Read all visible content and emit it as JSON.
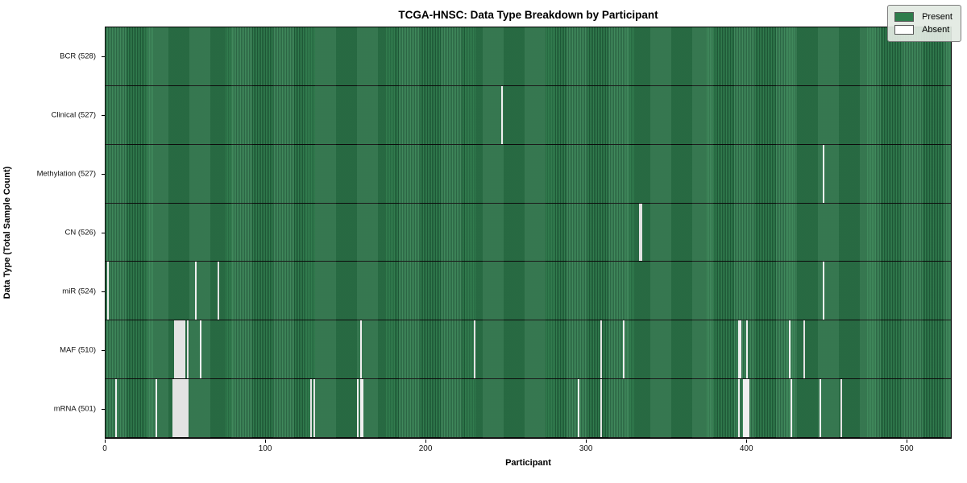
{
  "title": "TCGA-HNSC: Data Type Breakdown by Participant",
  "xlabel": "Participant",
  "ylabel": "Data Type (Total Sample Count)",
  "legend": {
    "present_label": "Present",
    "absent_label": "Absent"
  },
  "colors": {
    "present": "#2e7d4c",
    "present_stripe": "#1f5c39",
    "absent": "#efefef",
    "row_divider": "#0d0d0d",
    "legend_bg": "#e2e9e2"
  },
  "chart_data": {
    "type": "heatmap",
    "title": "TCGA-HNSC: Data Type Breakdown by Participant",
    "xlabel": "Participant",
    "ylabel": "Data Type (Total Sample Count)",
    "legend_entries": [
      "Present",
      "Absent"
    ],
    "legend_position": "upper right",
    "x_ticks": [
      0,
      100,
      200,
      300,
      400,
      500
    ],
    "xlim": [
      0,
      528
    ],
    "n_participants": 528,
    "grid": false,
    "rows": [
      {
        "label": "BCR (528)",
        "data_type": "BCR",
        "present_count": 528,
        "absent_participants": []
      },
      {
        "label": "Clinical (527)",
        "data_type": "Clinical",
        "present_count": 527,
        "absent_participants": [
          247
        ]
      },
      {
        "label": "Methylation (527)",
        "data_type": "Methylation",
        "present_count": 527,
        "absent_participants": [
          448
        ]
      },
      {
        "label": "CN (526)",
        "data_type": "CN",
        "present_count": 526,
        "absent_participants": [
          333,
          334
        ]
      },
      {
        "label": "miR (524)",
        "data_type": "miR",
        "present_count": 524,
        "absent_participants": [
          1,
          56,
          70,
          448
        ]
      },
      {
        "label": "MAF (510)",
        "data_type": "MAF",
        "present_count": 510,
        "absent_participants": [
          43,
          44,
          45,
          46,
          47,
          48,
          49,
          51,
          59,
          159,
          230,
          309,
          323,
          395,
          396,
          400,
          427,
          436
        ]
      },
      {
        "label": "mRNA (501)",
        "data_type": "mRNA",
        "present_count": 501,
        "absent_participants": [
          6,
          31,
          42,
          43,
          44,
          45,
          46,
          47,
          48,
          49,
          50,
          51,
          128,
          130,
          157,
          159,
          160,
          295,
          309,
          395,
          398,
          399,
          400,
          401,
          428,
          446,
          459
        ]
      }
    ]
  }
}
